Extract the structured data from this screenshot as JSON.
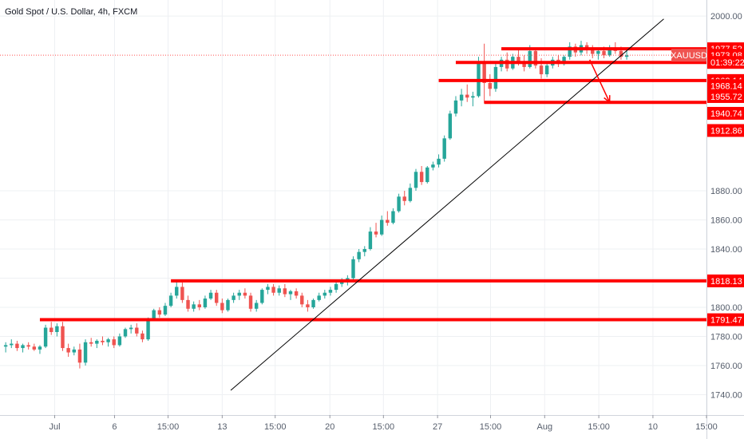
{
  "header": {
    "title": "Gold Spot / U.S. Dollar, 4h, FXCM"
  },
  "colors": {
    "up": "#26a69a",
    "down": "#ef5350",
    "level_line": "#ff0000",
    "trendline": "#000000",
    "price_line": "#ff5252",
    "grid": "#eef0f3",
    "axis_text": "#555d6b",
    "badge_symbol": "#ef5350"
  },
  "chart_data": {
    "type": "candlestick",
    "symbol": "XAUUSD",
    "timeframe": "4h",
    "y_axis": {
      "ylim": [
        1726,
        2011
      ],
      "ticks": [
        2000,
        1880,
        1860,
        1840,
        1820,
        1800,
        1780,
        1760,
        1740
      ],
      "tick_labels": [
        "2000.00",
        "1880.00",
        "1860.00",
        "1840.00",
        "1820.00",
        "1800.00",
        "1780.00",
        "1760.00",
        "1740.00"
      ]
    },
    "x_axis": {
      "xlim": [
        0,
        124
      ],
      "ticks": [
        {
          "label": "Jul",
          "x": 9.6
        },
        {
          "label": "6",
          "x": 20.1
        },
        {
          "label": "15:00",
          "x": 29.5
        },
        {
          "label": "13",
          "x": 39
        },
        {
          "label": "15:00",
          "x": 48.3
        },
        {
          "label": "20",
          "x": 57.9
        },
        {
          "label": "15:00",
          "x": 67.3
        },
        {
          "label": "27",
          "x": 76.8
        },
        {
          "label": "15:00",
          "x": 86.1
        },
        {
          "label": "Aug",
          "x": 95.6
        },
        {
          "label": "15:00",
          "x": 105.1
        },
        {
          "label": "10",
          "x": 114.6
        },
        {
          "label": "15:00",
          "x": 124
        }
      ]
    },
    "candles": [
      [
        1,
        1773,
        1776,
        1769,
        1774
      ],
      [
        2,
        1774,
        1778,
        1772,
        1775
      ],
      [
        3,
        1775,
        1777,
        1770,
        1772
      ],
      [
        4,
        1772,
        1775,
        1769,
        1774
      ],
      [
        5,
        1774,
        1776,
        1771,
        1773
      ],
      [
        6,
        1773,
        1775,
        1770,
        1771
      ],
      [
        7,
        1771,
        1774,
        1768,
        1773
      ],
      [
        8,
        1773,
        1788,
        1772,
        1786
      ],
      [
        9,
        1786,
        1790,
        1781,
        1783
      ],
      [
        10,
        1783,
        1789,
        1780,
        1787
      ],
      [
        11,
        1787,
        1790,
        1770,
        1772
      ],
      [
        12,
        1772,
        1775,
        1766,
        1769
      ],
      [
        13,
        1769,
        1773,
        1767,
        1771
      ],
      [
        14,
        1771,
        1775,
        1758,
        1762
      ],
      [
        15,
        1762,
        1778,
        1760,
        1776
      ],
      [
        16,
        1776,
        1779,
        1773,
        1775
      ],
      [
        17,
        1775,
        1778,
        1772,
        1777
      ],
      [
        18,
        1777,
        1780,
        1774,
        1776
      ],
      [
        19,
        1776,
        1779,
        1773,
        1778
      ],
      [
        20,
        1778,
        1780,
        1772,
        1774
      ],
      [
        21,
        1774,
        1782,
        1773,
        1780
      ],
      [
        22,
        1780,
        1786,
        1779,
        1785
      ],
      [
        23,
        1785,
        1788,
        1782,
        1786
      ],
      [
        24,
        1786,
        1789,
        1780,
        1782
      ],
      [
        25,
        1782,
        1784,
        1776,
        1778
      ],
      [
        26,
        1778,
        1793,
        1777,
        1792
      ],
      [
        27,
        1792,
        1799,
        1791,
        1798
      ],
      [
        28,
        1798,
        1800,
        1793,
        1795
      ],
      [
        29,
        1795,
        1803,
        1794,
        1801
      ],
      [
        30,
        1801,
        1810,
        1800,
        1808
      ],
      [
        31,
        1808,
        1818,
        1806,
        1814
      ],
      [
        32,
        1814,
        1817,
        1803,
        1805
      ],
      [
        33,
        1805,
        1808,
        1797,
        1799
      ],
      [
        34,
        1799,
        1804,
        1797,
        1802
      ],
      [
        35,
        1802,
        1805,
        1798,
        1800
      ],
      [
        36,
        1800,
        1808,
        1799,
        1806
      ],
      [
        37,
        1806,
        1812,
        1805,
        1810
      ],
      [
        38,
        1810,
        1812,
        1801,
        1803
      ],
      [
        39,
        1803,
        1806,
        1796,
        1798
      ],
      [
        40,
        1798,
        1806,
        1797,
        1805
      ],
      [
        41,
        1805,
        1810,
        1803,
        1808
      ],
      [
        42,
        1808,
        1812,
        1805,
        1810
      ],
      [
        43,
        1810,
        1813,
        1806,
        1808
      ],
      [
        44,
        1808,
        1810,
        1797,
        1799
      ],
      [
        45,
        1799,
        1805,
        1797,
        1803
      ],
      [
        46,
        1803,
        1813,
        1802,
        1812
      ],
      [
        47,
        1812,
        1816,
        1809,
        1814
      ],
      [
        48,
        1814,
        1816,
        1808,
        1810
      ],
      [
        49,
        1810,
        1815,
        1808,
        1813
      ],
      [
        50,
        1813,
        1816,
        1807,
        1809
      ],
      [
        51,
        1809,
        1812,
        1805,
        1811
      ],
      [
        52,
        1811,
        1813,
        1806,
        1808
      ],
      [
        53,
        1808,
        1810,
        1800,
        1802
      ],
      [
        54,
        1802,
        1805,
        1797,
        1800
      ],
      [
        55,
        1800,
        1806,
        1799,
        1805
      ],
      [
        56,
        1805,
        1810,
        1804,
        1808
      ],
      [
        57,
        1808,
        1812,
        1806,
        1810
      ],
      [
        58,
        1810,
        1814,
        1808,
        1812
      ],
      [
        59,
        1812,
        1818,
        1810,
        1816
      ],
      [
        60,
        1816,
        1820,
        1814,
        1818
      ],
      [
        61,
        1818,
        1822,
        1815,
        1820
      ],
      [
        62,
        1820,
        1835,
        1819,
        1833
      ],
      [
        63,
        1833,
        1840,
        1831,
        1838
      ],
      [
        64,
        1838,
        1842,
        1835,
        1840
      ],
      [
        65,
        1840,
        1855,
        1839,
        1852
      ],
      [
        66,
        1852,
        1858,
        1848,
        1850
      ],
      [
        67,
        1850,
        1863,
        1849,
        1860
      ],
      [
        68,
        1860,
        1866,
        1856,
        1858
      ],
      [
        69,
        1858,
        1868,
        1857,
        1866
      ],
      [
        70,
        1866,
        1878,
        1865,
        1876
      ],
      [
        71,
        1876,
        1880,
        1870,
        1873
      ],
      [
        72,
        1873,
        1885,
        1872,
        1882
      ],
      [
        73,
        1882,
        1895,
        1880,
        1893
      ],
      [
        74,
        1893,
        1897,
        1884,
        1886
      ],
      [
        75,
        1886,
        1897,
        1885,
        1896
      ],
      [
        76,
        1896,
        1900,
        1894,
        1898
      ],
      [
        77,
        1898,
        1905,
        1896,
        1902
      ],
      [
        78,
        1902,
        1918,
        1900,
        1916
      ],
      [
        79,
        1916,
        1935,
        1915,
        1933
      ],
      [
        80,
        1933,
        1945,
        1931,
        1942
      ],
      [
        81,
        1942,
        1950,
        1938,
        1946
      ],
      [
        82,
        1946,
        1953,
        1941,
        1944
      ],
      [
        83,
        1944,
        1948,
        1938,
        1945
      ],
      [
        84,
        1945,
        1972,
        1944,
        1968
      ],
      [
        85,
        1968,
        1981,
        1940,
        1954
      ],
      [
        86,
        1954,
        1960,
        1945,
        1950
      ],
      [
        87,
        1950,
        1968,
        1948,
        1965
      ],
      [
        88,
        1965,
        1972,
        1962,
        1970
      ],
      [
        89,
        1970,
        1975,
        1962,
        1964
      ],
      [
        90,
        1964,
        1974,
        1963,
        1972
      ],
      [
        91,
        1972,
        1978,
        1966,
        1968
      ],
      [
        92,
        1968,
        1973,
        1962,
        1965
      ],
      [
        93,
        1965,
        1980,
        1964,
        1976
      ],
      [
        94,
        1976,
        1978,
        1964,
        1966
      ],
      [
        95,
        1966,
        1971,
        1957,
        1960
      ],
      [
        96,
        1960,
        1968,
        1958,
        1966
      ],
      [
        97,
        1966,
        1972,
        1964,
        1970
      ],
      [
        98,
        1970,
        1973,
        1965,
        1967
      ],
      [
        99,
        1967,
        1973,
        1966,
        1972
      ],
      [
        100,
        1972,
        1982,
        1970,
        1979
      ],
      [
        101,
        1979,
        1981,
        1972,
        1975
      ],
      [
        102,
        1975,
        1983,
        1973,
        1980
      ],
      [
        103,
        1980,
        1982,
        1974,
        1977
      ],
      [
        104,
        1977,
        1980,
        1971,
        1974
      ],
      [
        105,
        1974,
        1978,
        1970,
        1976
      ],
      [
        106,
        1976,
        1979,
        1971,
        1973
      ],
      [
        107,
        1973,
        1980,
        1972,
        1978
      ],
      [
        108,
        1978,
        1982,
        1974,
        1976
      ],
      [
        109,
        1976,
        1979,
        1970,
        1972
      ],
      [
        110,
        1972,
        1976,
        1970,
        1973
      ]
    ],
    "horizontal_levels": [
      {
        "price": 1977.52,
        "x_start": 88
      },
      {
        "price": 1968.14,
        "x_start": 80
      },
      {
        "price": 1955.72,
        "x_start": 77
      },
      {
        "price": 1940.74,
        "x_start": 85
      },
      {
        "price": 1818.13,
        "x_start": 30
      },
      {
        "price": 1791.47,
        "x_start": 7
      }
    ],
    "trendline": {
      "from": [
        40.5,
        1743
      ],
      "to": [
        116.5,
        1998
      ]
    },
    "arrow": {
      "from": [
        103.5,
        1970
      ],
      "to": [
        107,
        1940.74
      ]
    },
    "current_price_line": {
      "price": 1973.08
    },
    "price_labels": [
      {
        "price": 1977.52,
        "label": "1977.52"
      },
      {
        "price": 1973.08,
        "label": "1973.08",
        "symbol": "XAUUSD"
      },
      {
        "price": 1968.14,
        "label": "01:39:22"
      },
      {
        "price": 1955.72,
        "label": "1968.14"
      },
      {
        "price": 1952.2,
        "label": "1968.14"
      },
      {
        "price": 1944.7,
        "label": "1955.72"
      },
      {
        "price": 1933.2,
        "label": "1940.74"
      },
      {
        "price": 1921.4,
        "label": "1912.86"
      },
      {
        "price": 1818.13,
        "label": "1818.13"
      },
      {
        "price": 1791.47,
        "label": "1791.47"
      }
    ]
  }
}
